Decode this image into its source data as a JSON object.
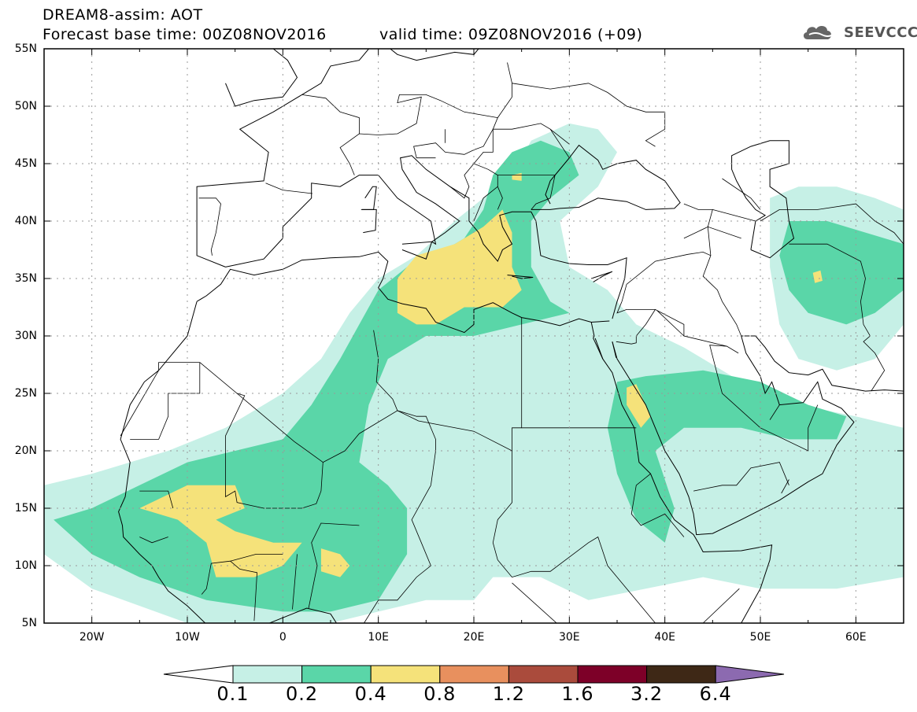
{
  "header": {
    "title_line1": "DREAM8-assim: AOT",
    "title_line2": "Forecast base time: 00Z08NOV2016",
    "valid_time": "valid time: 09Z08NOV2016 (+09)",
    "logo_text": "SEEVCCC"
  },
  "map": {
    "lat_labels": [
      "55N",
      "50N",
      "45N",
      "40N",
      "35N",
      "30N",
      "25N",
      "20N",
      "15N",
      "10N",
      "5N"
    ],
    "lon_labels": [
      "20W",
      "10W",
      "0",
      "10E",
      "20E",
      "30E",
      "40E",
      "50E",
      "60E"
    ],
    "extent": {
      "lon": [
        -25,
        65
      ],
      "lat": [
        5,
        55
      ]
    }
  },
  "colorbar": {
    "labels": [
      "0.1",
      "0.2",
      "0.4",
      "0.8",
      "1.2",
      "1.6",
      "3.2",
      "6.4"
    ],
    "colors": [
      "#ffffff",
      "#c6f0e6",
      "#5ad6a8",
      "#f5e27a",
      "#e8905e",
      "#aa4b3c",
      "#7d0028",
      "#3e2816",
      "#8c6ab0"
    ]
  },
  "chart_data": {
    "type": "heatmap",
    "variable": "AOT",
    "levels": [
      0.1,
      0.2,
      0.4,
      0.8,
      1.2,
      1.6,
      3.2,
      6.4
    ],
    "regions": [
      {
        "level": 0.1,
        "color": "#c6f0e6",
        "poly": [
          [
            -25,
            17
          ],
          [
            -20,
            18
          ],
          [
            -12,
            20
          ],
          [
            -6,
            22
          ],
          [
            0,
            25
          ],
          [
            4,
            28
          ],
          [
            7,
            32
          ],
          [
            10,
            35
          ],
          [
            14,
            37
          ],
          [
            18,
            40
          ],
          [
            21,
            42
          ],
          [
            24,
            44
          ],
          [
            26,
            47
          ],
          [
            30,
            48.5
          ],
          [
            33,
            48
          ],
          [
            35,
            46
          ],
          [
            33,
            43
          ],
          [
            29,
            40
          ],
          [
            30,
            36
          ],
          [
            34,
            34
          ],
          [
            37,
            31
          ],
          [
            42,
            29
          ],
          [
            46,
            27
          ],
          [
            50,
            25
          ],
          [
            54,
            24
          ],
          [
            60,
            23
          ],
          [
            65,
            22
          ],
          [
            65,
            9
          ],
          [
            58,
            8
          ],
          [
            50,
            8
          ],
          [
            44,
            9
          ],
          [
            38,
            8
          ],
          [
            32,
            7
          ],
          [
            27,
            9
          ],
          [
            22,
            9
          ],
          [
            20,
            7
          ],
          [
            15,
            7
          ],
          [
            10,
            6
          ],
          [
            5,
            5
          ],
          [
            0,
            5
          ],
          [
            -10,
            5
          ],
          [
            -20,
            8
          ],
          [
            -25,
            11
          ]
        ]
      },
      {
        "level": 0.1,
        "color": "#c6f0e6",
        "poly": [
          [
            51,
            42
          ],
          [
            54,
            43
          ],
          [
            58,
            43
          ],
          [
            62,
            42
          ],
          [
            65,
            41
          ],
          [
            65,
            31
          ],
          [
            62,
            28
          ],
          [
            58,
            27
          ],
          [
            54,
            28
          ],
          [
            52,
            31
          ],
          [
            51,
            36
          ]
        ]
      },
      {
        "level": 0.2,
        "color": "#5ad6a8",
        "poly": [
          [
            -24,
            14
          ],
          [
            -20,
            15
          ],
          [
            -15,
            17
          ],
          [
            -10,
            19
          ],
          [
            -5,
            20
          ],
          [
            0,
            21
          ],
          [
            3,
            24
          ],
          [
            6,
            28
          ],
          [
            8,
            31
          ],
          [
            10,
            34
          ],
          [
            13,
            36
          ],
          [
            16,
            37
          ],
          [
            19,
            38.5
          ],
          [
            21,
            41
          ],
          [
            22,
            44
          ],
          [
            24,
            46
          ],
          [
            27,
            47
          ],
          [
            30,
            46
          ],
          [
            31,
            44
          ],
          [
            28,
            42
          ],
          [
            26,
            40
          ],
          [
            26,
            36
          ],
          [
            28,
            33
          ],
          [
            30,
            32
          ],
          [
            25,
            31
          ],
          [
            20,
            30
          ],
          [
            15,
            30
          ],
          [
            11,
            28
          ],
          [
            9,
            24
          ],
          [
            8,
            19
          ],
          [
            11,
            17
          ],
          [
            13,
            15
          ],
          [
            13,
            11
          ],
          [
            10,
            7
          ],
          [
            5,
            6
          ],
          [
            0,
            6
          ],
          [
            -8,
            7
          ],
          [
            -15,
            9
          ],
          [
            -20,
            11
          ]
        ]
      },
      {
        "level": 0.2,
        "color": "#5ad6a8",
        "poly": [
          [
            35,
            26
          ],
          [
            38,
            26.5
          ],
          [
            44,
            27
          ],
          [
            50,
            26
          ],
          [
            55,
            24
          ],
          [
            59,
            23
          ],
          [
            58,
            21
          ],
          [
            53,
            21
          ],
          [
            48,
            22
          ],
          [
            42,
            22
          ],
          [
            39,
            20
          ],
          [
            41,
            15
          ],
          [
            40,
            12
          ],
          [
            37,
            14
          ],
          [
            35,
            18
          ],
          [
            34,
            22
          ]
        ]
      },
      {
        "level": 0.2,
        "color": "#5ad6a8",
        "poly": [
          [
            53,
            40
          ],
          [
            57,
            40
          ],
          [
            61,
            39
          ],
          [
            65,
            38
          ],
          [
            65,
            34
          ],
          [
            62,
            32
          ],
          [
            59,
            31
          ],
          [
            55,
            32
          ],
          [
            53,
            34
          ],
          [
            52,
            37
          ]
        ]
      },
      {
        "level": 0.4,
        "color": "#f5e27a",
        "poly": [
          [
            -15,
            15
          ],
          [
            -10,
            17
          ],
          [
            -5,
            17
          ],
          [
            -4,
            15
          ],
          [
            -7,
            14
          ],
          [
            -5,
            13
          ],
          [
            -1,
            12
          ],
          [
            2,
            12
          ],
          [
            0,
            10
          ],
          [
            -3,
            9
          ],
          [
            -7,
            9
          ],
          [
            -8,
            12
          ],
          [
            -11,
            14
          ]
        ]
      },
      {
        "level": 0.4,
        "color": "#f5e27a",
        "poly": [
          [
            4,
            11.5
          ],
          [
            6,
            11
          ],
          [
            7,
            10
          ],
          [
            6,
            9
          ],
          [
            4,
            9.5
          ]
        ]
      },
      {
        "level": 0.4,
        "color": "#f5e27a",
        "poly": [
          [
            12,
            35
          ],
          [
            14,
            37
          ],
          [
            18,
            38
          ],
          [
            21,
            39.5
          ],
          [
            23,
            41
          ],
          [
            24,
            39
          ],
          [
            24,
            36
          ],
          [
            25,
            34
          ],
          [
            23,
            32.5
          ],
          [
            19,
            32.5
          ],
          [
            16,
            31
          ],
          [
            14,
            31
          ],
          [
            12,
            32
          ],
          [
            12,
            34
          ]
        ]
      },
      {
        "level": 0.4,
        "color": "#f5e27a",
        "poly": [
          [
            24,
            44
          ],
          [
            25,
            44.2
          ],
          [
            25,
            43.5
          ],
          [
            24,
            43.6
          ]
        ]
      },
      {
        "level": 0.4,
        "color": "#f5e27a",
        "poly": [
          [
            36,
            25.5
          ],
          [
            37,
            25.8
          ],
          [
            38.5,
            23
          ],
          [
            37.5,
            22
          ],
          [
            36,
            24
          ]
        ]
      },
      {
        "level": 0.4,
        "color": "#f5e27a",
        "poly": [
          [
            55.5,
            35.5
          ],
          [
            56.3,
            35.7
          ],
          [
            56.5,
            34.8
          ],
          [
            55.7,
            34.6
          ]
        ]
      }
    ]
  }
}
